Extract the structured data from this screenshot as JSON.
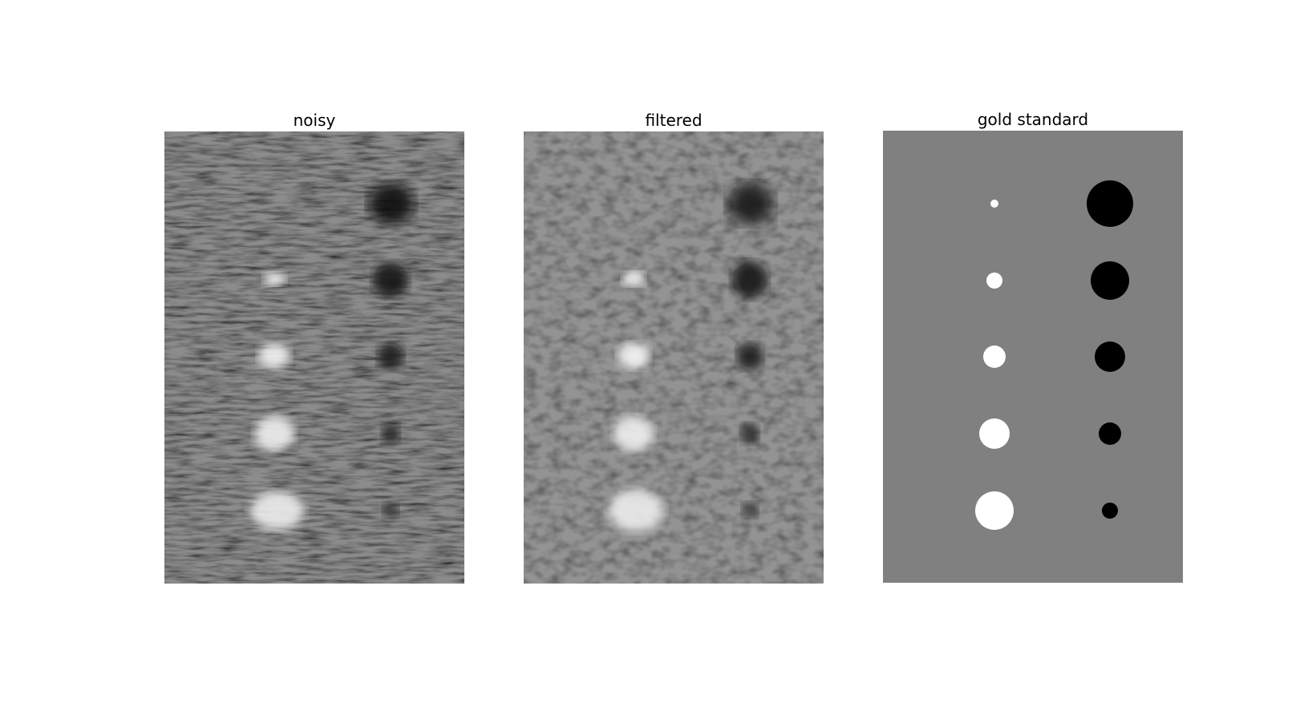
{
  "figure": {
    "panels": [
      {
        "id": "noisy",
        "title": "noisy"
      },
      {
        "id": "filtered",
        "title": "filtered"
      },
      {
        "id": "gold",
        "title": "gold standard"
      }
    ]
  },
  "colors": {
    "background": "#ffffff",
    "gold_background": "#808080",
    "bright": "#ffffff",
    "dark": "#000000"
  }
}
